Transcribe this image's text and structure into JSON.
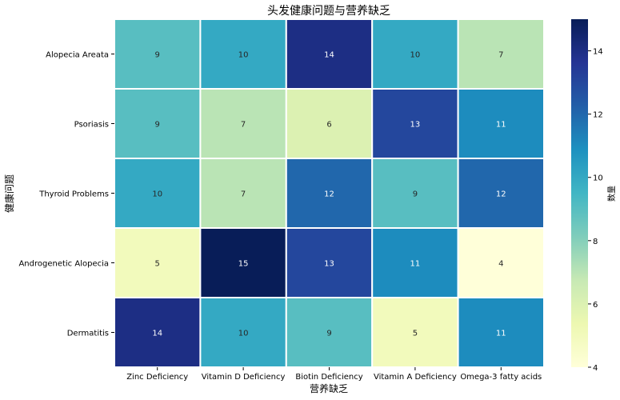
{
  "chart_data": {
    "type": "heatmap",
    "title": "头发健康问题与营养缺乏",
    "xlabel": "营养缺乏",
    "ylabel": "健康问题",
    "x_categories": [
      "Zinc Deficiency",
      "Vitamin D Deficiency",
      "Biotin Deficiency",
      "Vitamin A Deficiency",
      "Omega-3 fatty acids"
    ],
    "y_categories": [
      "Alopecia Areata",
      "Psoriasis",
      "Thyroid Problems",
      "Androgenetic Alopecia",
      "Dermatitis"
    ],
    "values": [
      [
        9,
        10,
        14,
        10,
        7
      ],
      [
        9,
        7,
        6,
        13,
        11
      ],
      [
        10,
        7,
        12,
        9,
        12
      ],
      [
        5,
        15,
        13,
        11,
        4
      ],
      [
        14,
        10,
        9,
        5,
        11
      ]
    ],
    "colorbar": {
      "label": "数量",
      "range": [
        4,
        15
      ],
      "ticks": [
        4,
        6,
        8,
        10,
        12,
        14
      ]
    },
    "colormap": [
      "#ffffd9",
      "#edf8b1",
      "#c7e9b4",
      "#7fcdbb",
      "#41b6c4",
      "#1d91c0",
      "#225ea8",
      "#253494",
      "#081d58"
    ],
    "annotation_colors": {
      "dark": "#262626",
      "light": "#ffffff"
    },
    "grid": false
  }
}
